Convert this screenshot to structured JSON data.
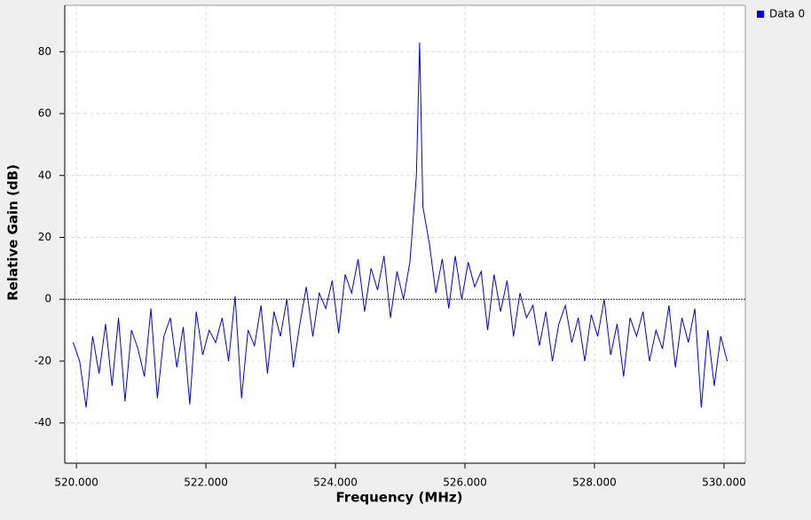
{
  "chart_data": {
    "type": "line",
    "x_label": "Frequency (MHz)",
    "y_label": "Relative Gain (dB)",
    "x": [
      519.95,
      520.05,
      520.15,
      520.25,
      520.35,
      520.45,
      520.55,
      520.65,
      520.75,
      520.85,
      520.95,
      521.05,
      521.15,
      521.25,
      521.35,
      521.45,
      521.55,
      521.65,
      521.75,
      521.85,
      521.95,
      522.05,
      522.15,
      522.25,
      522.35,
      522.45,
      522.55,
      522.65,
      522.75,
      522.85,
      522.95,
      523.05,
      523.15,
      523.25,
      523.35,
      523.45,
      523.55,
      523.65,
      523.75,
      523.85,
      523.95,
      524.05,
      524.15,
      524.25,
      524.35,
      524.45,
      524.55,
      524.65,
      524.75,
      524.85,
      524.95,
      525.05,
      525.15,
      525.25,
      525.3,
      525.35,
      525.45,
      525.55,
      525.65,
      525.75,
      525.85,
      525.95,
      526.05,
      526.15,
      526.25,
      526.35,
      526.45,
      526.55,
      526.65,
      526.75,
      526.85,
      526.95,
      527.05,
      527.15,
      527.25,
      527.35,
      527.45,
      527.55,
      527.65,
      527.75,
      527.85,
      527.95,
      528.05,
      528.15,
      528.25,
      528.35,
      528.45,
      528.55,
      528.65,
      528.75,
      528.85,
      528.95,
      529.05,
      529.15,
      529.25,
      529.35,
      529.45,
      529.55,
      529.65,
      529.75,
      529.85,
      529.95,
      530.05
    ],
    "series": [
      {
        "name": "Data 0",
        "color": "#0000ee",
        "values": [
          -14,
          -20,
          -35,
          -12,
          -24,
          -8,
          -28,
          -6,
          -33,
          -10,
          -16,
          -25,
          -3,
          -32,
          -12,
          -6,
          -22,
          -9,
          -34,
          -4,
          -18,
          -10,
          -14,
          -6,
          -20,
          1,
          -32,
          -10,
          -15,
          -2,
          -24,
          -4,
          -12,
          0,
          -22,
          -8,
          4,
          -12,
          2,
          -3,
          6,
          -11,
          8,
          2,
          13,
          -4,
          10,
          3,
          14,
          -6,
          9,
          0,
          12,
          40,
          83,
          30,
          18,
          2,
          13,
          -3,
          14,
          0,
          12,
          4,
          9,
          -10,
          8,
          -4,
          6,
          -12,
          2,
          -6,
          -2,
          -15,
          -4,
          -20,
          -8,
          -2,
          -14,
          -6,
          -20,
          -5,
          -12,
          0,
          -18,
          -8,
          -25,
          -6,
          -12,
          -4,
          -20,
          -10,
          -16,
          -2,
          -22,
          -6,
          -14,
          -3,
          -35,
          -10,
          -28,
          -12,
          -20
        ]
      }
    ],
    "xlim": [
      519.82,
      530.33
    ],
    "ylim": [
      -53,
      95
    ],
    "xticks": [
      {
        "value": 520,
        "label": "520.000"
      },
      {
        "value": 522,
        "label": "522.000"
      },
      {
        "value": 524,
        "label": "524.000"
      },
      {
        "value": 526,
        "label": "526.000"
      },
      {
        "value": 528,
        "label": "528.000"
      },
      {
        "value": 530,
        "label": "530.000"
      }
    ],
    "yticks": [
      -40,
      -20,
      0,
      20,
      40,
      60,
      80
    ],
    "hline": 0,
    "grid": true,
    "legend": "top-right"
  }
}
